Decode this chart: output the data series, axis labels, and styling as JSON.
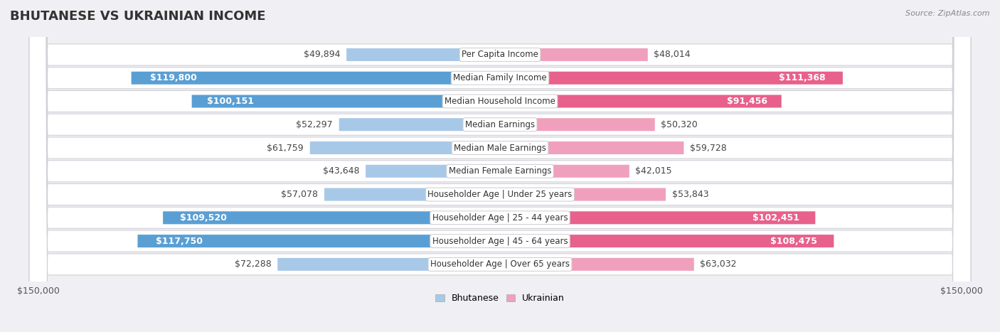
{
  "title": "BHUTANESE VS UKRAINIAN INCOME",
  "source": "Source: ZipAtlas.com",
  "categories": [
    "Per Capita Income",
    "Median Family Income",
    "Median Household Income",
    "Median Earnings",
    "Median Male Earnings",
    "Median Female Earnings",
    "Householder Age | Under 25 years",
    "Householder Age | 25 - 44 years",
    "Householder Age | 45 - 64 years",
    "Householder Age | Over 65 years"
  ],
  "bhutanese": [
    49894,
    119800,
    100151,
    52297,
    61759,
    43648,
    57078,
    109520,
    117750,
    72288
  ],
  "ukrainian": [
    48014,
    111368,
    91456,
    50320,
    59728,
    42015,
    53843,
    102451,
    108475,
    63032
  ],
  "max_val": 150000,
  "bhutanese_color_light": "#a8c8e8",
  "bhutanese_color_dark": "#5a9fd4",
  "ukrainian_color_light": "#f0a0bc",
  "ukrainian_color_dark": "#e8608c",
  "white_label_threshold": 80000,
  "bar_height": 0.55,
  "row_bg": "#ffffff",
  "row_border": "#d0d0d8",
  "outer_bg": "#f0f0f4",
  "title_fontsize": 13,
  "source_fontsize": 8,
  "axis_label_fontsize": 9,
  "bar_label_fontsize": 9,
  "category_fontsize": 8.5,
  "legend_fontsize": 9
}
